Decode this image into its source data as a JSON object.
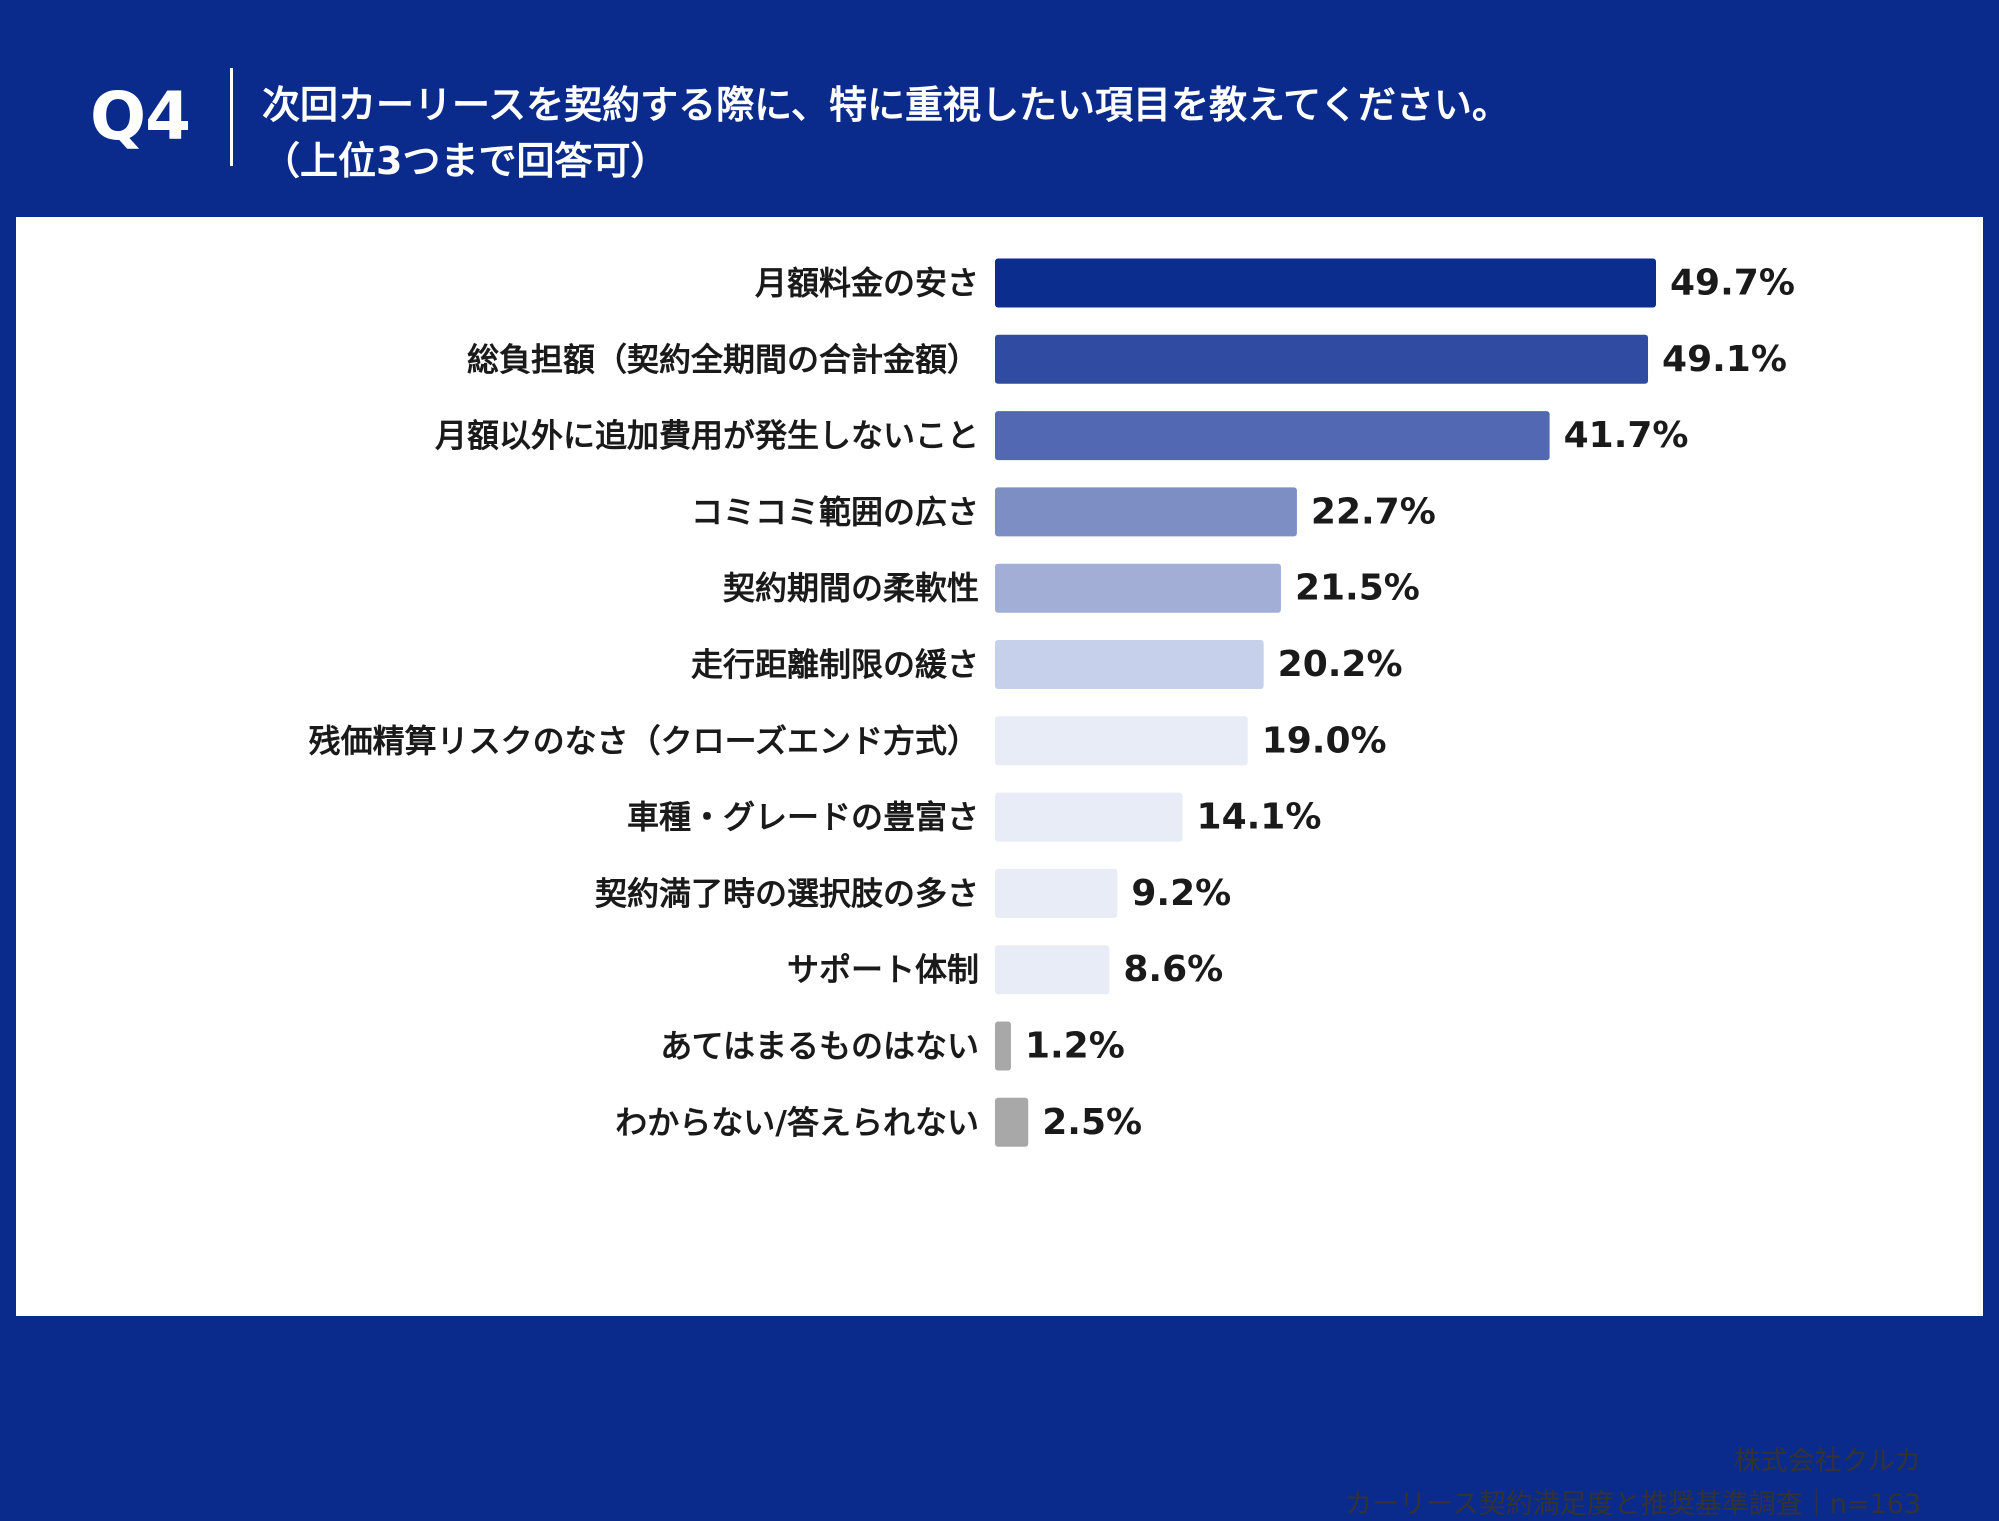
{
  "header": {
    "question_no": "Q4",
    "title_line1": "次回カーリースを契約する際に、特に重視したい項目を教えてください。",
    "title_line2": "（上位3つまで回答可）"
  },
  "footer": {
    "company": "株式会社クルカ",
    "survey": "カーリース契約満足度と推奨基準調査｜n=163"
  },
  "chart_data": {
    "type": "bar",
    "orientation": "horizontal",
    "categories": [
      "月額料金の安さ",
      "総負担額（契約全期間の合計金額）",
      "月額以外に追加費用が発生しないこと",
      "コミコミ範囲の広さ",
      "契約期間の柔軟性",
      "走行距離制限の緩さ",
      "残価精算リスクのなさ（クローズエンド方式）",
      "車種・グレードの豊富さ",
      "契約満了時の選択肢の多さ",
      "サポート体制",
      "あてはまるものはない",
      "わからない/答えられない"
    ],
    "values": [
      49.7,
      49.1,
      41.7,
      22.7,
      21.5,
      20.2,
      19.0,
      14.1,
      9.2,
      8.6,
      1.2,
      2.5
    ],
    "value_labels": [
      "49.7%",
      "49.1%",
      "41.7%",
      "22.7%",
      "21.5%",
      "20.2%",
      "19.0%",
      "14.1%",
      "9.2%",
      "8.6%",
      "1.2%",
      "2.5%"
    ],
    "bar_colors": [
      "#0b2d8e",
      "#2f4ba2",
      "#5268b3",
      "#7d8ec5",
      "#a2aed6",
      "#c7d0ea",
      "#e7ecf7",
      "#e7ecf7",
      "#e7ecf7",
      "#e7ecf7",
      "#a8a8a8",
      "#a8a8a8"
    ],
    "unit": "%"
  }
}
